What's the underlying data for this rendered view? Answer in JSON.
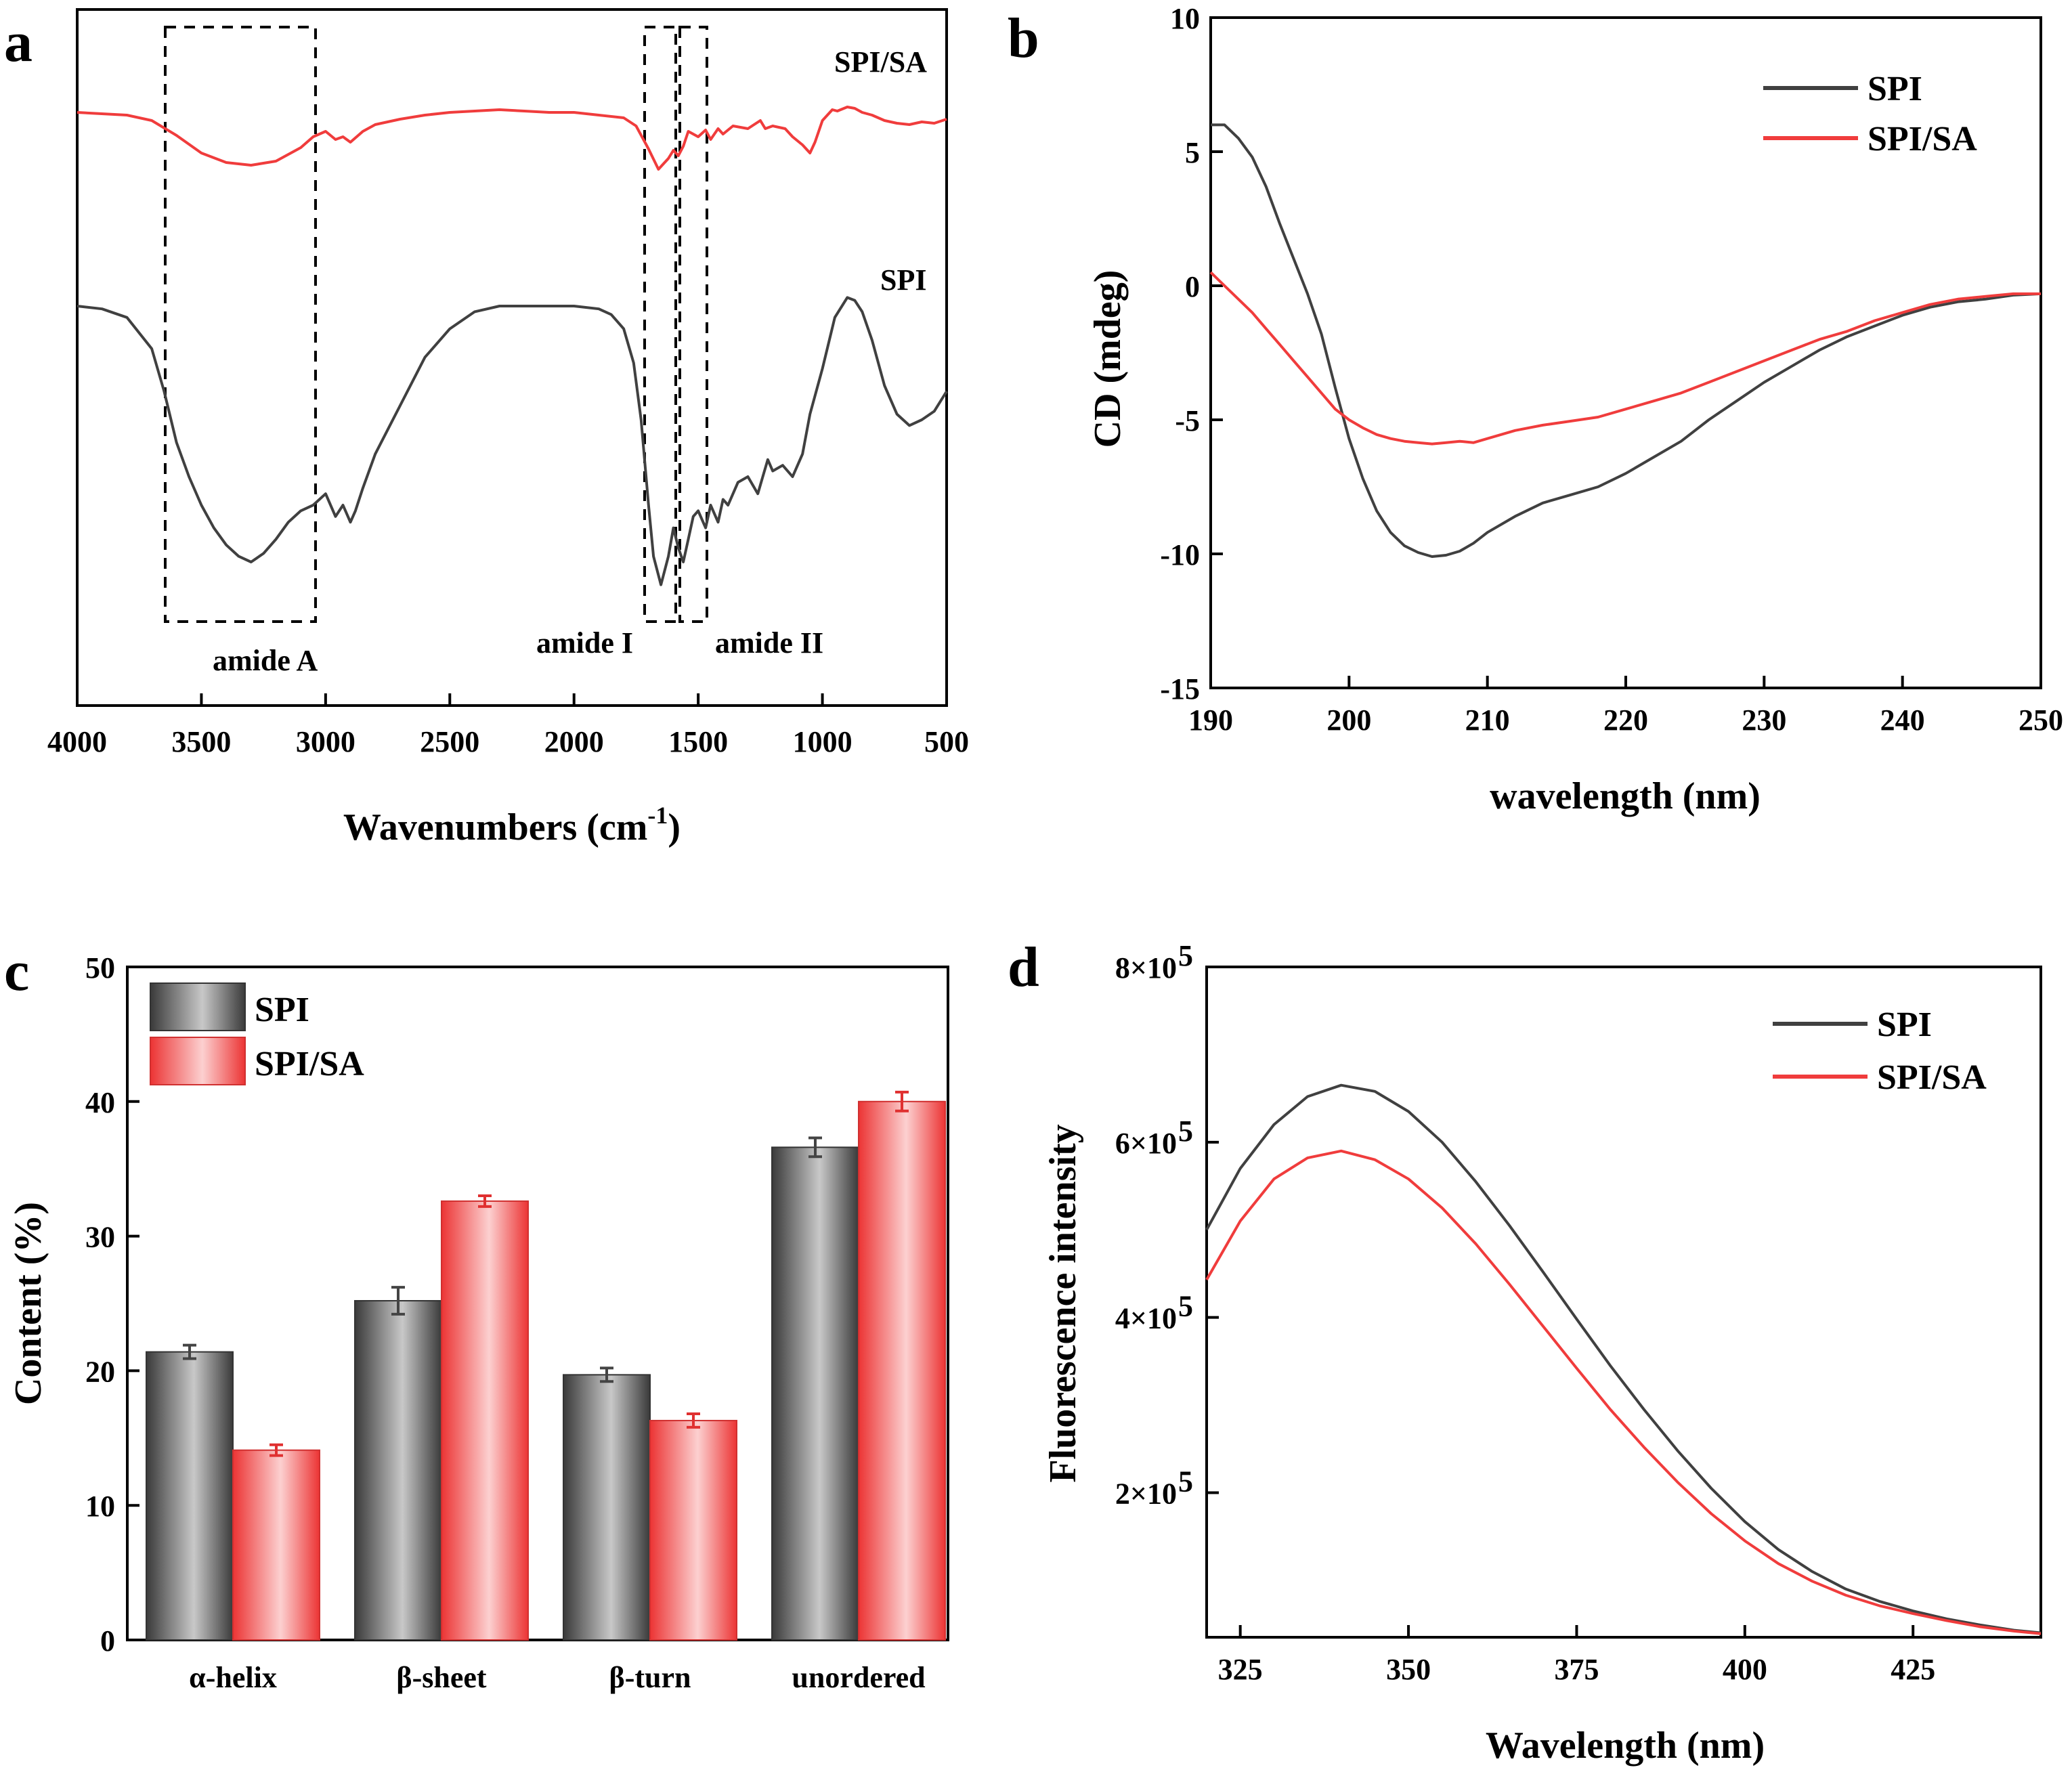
{
  "colors": {
    "spi": "#404040",
    "spisa": "#f03c3c",
    "dash": "#000000"
  },
  "panels": {
    "a": {
      "letter": "a",
      "xlabel_main": "Wavenumbers (cm",
      "xlabel_sup": "-1",
      "xlabel_end": ")",
      "ticks": [
        "4000",
        "3500",
        "3000",
        "2500",
        "2000",
        "1500",
        "1000",
        "500"
      ],
      "labels": {
        "spisa": "SPI/SA",
        "spi": "SPI"
      },
      "annotations": {
        "amide_a": "amide A",
        "amide_i": "amide I",
        "amide_ii": "amide II"
      }
    },
    "b": {
      "letter": "b",
      "xlabel": "wavelength (nm)",
      "ylabel": "CD (mdeg)",
      "xticks": [
        "190",
        "200",
        "210",
        "220",
        "230",
        "240",
        "250"
      ],
      "yticks": [
        "10",
        "5",
        "0",
        "-5",
        "-10",
        "-15"
      ],
      "legend": [
        "SPI",
        "SPI/SA"
      ]
    },
    "c": {
      "letter": "c",
      "ylabel": "Content (%)",
      "yticks": [
        "0",
        "10",
        "20",
        "30",
        "40",
        "50"
      ],
      "legend": [
        "SPI",
        "SPI/SA"
      ]
    },
    "d": {
      "letter": "d",
      "xlabel": "Wavelength (nm)",
      "ylabel": "Fluorescence intensity",
      "xticks": [
        "325",
        "350",
        "375",
        "400",
        "425"
      ],
      "ytick_base": [
        "2×10",
        "4×10",
        "6×10",
        "8×10"
      ],
      "ytick_exp": "5",
      "legend": [
        "SPI",
        "SPI/SA"
      ]
    }
  },
  "chart_data": [
    {
      "panel": "a",
      "type": "line",
      "title": "",
      "xlabel": "Wavenumbers (cm-1)",
      "ylabel": "",
      "xlim": [
        4000,
        500
      ],
      "series": [
        {
          "name": "SPI/SA",
          "x": [
            4000,
            3800,
            3700,
            3600,
            3500,
            3400,
            3300,
            3200,
            3100,
            3050,
            3000,
            2960,
            2930,
            2900,
            2850,
            2800,
            2700,
            2600,
            2500,
            2400,
            2300,
            2200,
            2100,
            2000,
            1900,
            1800,
            1750,
            1700,
            1660,
            1620,
            1600,
            1580,
            1560,
            1540,
            1500,
            1470,
            1450,
            1420,
            1400,
            1360,
            1300,
            1250,
            1230,
            1200,
            1150,
            1120,
            1080,
            1050,
            1030,
            1000,
            960,
            940,
            900,
            870,
            840,
            800,
            750,
            700,
            650,
            600,
            550,
            500
          ],
          "y": [
            0.92,
            0.9,
            0.86,
            0.75,
            0.62,
            0.55,
            0.53,
            0.56,
            0.66,
            0.74,
            0.78,
            0.72,
            0.74,
            0.7,
            0.78,
            0.83,
            0.87,
            0.9,
            0.92,
            0.93,
            0.94,
            0.93,
            0.92,
            0.92,
            0.9,
            0.88,
            0.82,
            0.65,
            0.5,
            0.58,
            0.64,
            0.6,
            0.67,
            0.78,
            0.74,
            0.79,
            0.72,
            0.8,
            0.76,
            0.82,
            0.8,
            0.86,
            0.8,
            0.82,
            0.8,
            0.74,
            0.68,
            0.62,
            0.7,
            0.86,
            0.94,
            0.93,
            0.96,
            0.95,
            0.92,
            0.9,
            0.86,
            0.84,
            0.83,
            0.85,
            0.84,
            0.87
          ]
        },
        {
          "name": "SPI",
          "x": [
            4000,
            3900,
            3800,
            3700,
            3650,
            3600,
            3550,
            3500,
            3450,
            3400,
            3350,
            3300,
            3250,
            3200,
            3150,
            3100,
            3050,
            3000,
            2960,
            2930,
            2900,
            2880,
            2850,
            2800,
            2700,
            2600,
            2500,
            2400,
            2300,
            2200,
            2100,
            2000,
            1900,
            1850,
            1800,
            1760,
            1730,
            1700,
            1680,
            1650,
            1620,
            1600,
            1580,
            1560,
            1540,
            1520,
            1500,
            1470,
            1450,
            1420,
            1400,
            1380,
            1340,
            1300,
            1260,
            1240,
            1220,
            1200,
            1160,
            1120,
            1080,
            1050,
            1000,
            950,
            900,
            870,
            840,
            800,
            750,
            700,
            650,
            600,
            550,
            500
          ],
          "y": [
            0.9,
            0.89,
            0.86,
            0.75,
            0.6,
            0.42,
            0.3,
            0.2,
            0.12,
            0.06,
            0.02,
            0.0,
            0.03,
            0.08,
            0.14,
            0.18,
            0.2,
            0.24,
            0.16,
            0.2,
            0.14,
            0.18,
            0.26,
            0.38,
            0.55,
            0.72,
            0.82,
            0.88,
            0.9,
            0.9,
            0.9,
            0.9,
            0.89,
            0.87,
            0.82,
            0.7,
            0.5,
            0.2,
            0.02,
            -0.08,
            0.02,
            0.12,
            0.05,
            0.0,
            0.08,
            0.16,
            0.18,
            0.12,
            0.2,
            0.14,
            0.22,
            0.2,
            0.28,
            0.3,
            0.24,
            0.3,
            0.36,
            0.32,
            0.34,
            0.3,
            0.38,
            0.52,
            0.68,
            0.86,
            0.93,
            0.92,
            0.88,
            0.78,
            0.62,
            0.52,
            0.48,
            0.5,
            0.53,
            0.6
          ]
        }
      ],
      "annotations": [
        "amide A",
        "amide I",
        "amide II"
      ]
    },
    {
      "panel": "b",
      "type": "line",
      "title": "",
      "xlabel": "wavelength (nm)",
      "ylabel": "CD (mdeg)",
      "xlim": [
        190,
        250
      ],
      "ylim": [
        -15,
        10
      ],
      "legend_position": "top-right",
      "series": [
        {
          "name": "SPI",
          "x": [
            190,
            191,
            192,
            193,
            194,
            195,
            196,
            197,
            198,
            199,
            200,
            201,
            202,
            203,
            204,
            205,
            206,
            207,
            208,
            209,
            210,
            212,
            214,
            216,
            218,
            220,
            222,
            224,
            226,
            228,
            230,
            232,
            234,
            236,
            238,
            240,
            242,
            244,
            246,
            248,
            250
          ],
          "y": [
            6.0,
            6.0,
            5.5,
            4.8,
            3.7,
            2.3,
            1.0,
            -0.3,
            -1.8,
            -3.8,
            -5.7,
            -7.2,
            -8.4,
            -9.2,
            -9.7,
            -9.95,
            -10.1,
            -10.05,
            -9.9,
            -9.6,
            -9.2,
            -8.6,
            -8.1,
            -7.8,
            -7.5,
            -7.0,
            -6.4,
            -5.8,
            -5.0,
            -4.3,
            -3.6,
            -3.0,
            -2.4,
            -1.9,
            -1.5,
            -1.1,
            -0.8,
            -0.6,
            -0.5,
            -0.35,
            -0.3
          ]
        },
        {
          "name": "SPI/SA",
          "x": [
            190,
            191,
            192,
            193,
            194,
            195,
            196,
            197,
            198,
            199,
            200,
            201,
            202,
            203,
            204,
            205,
            206,
            207,
            208,
            209,
            210,
            212,
            214,
            216,
            218,
            220,
            222,
            224,
            226,
            228,
            230,
            232,
            234,
            236,
            238,
            240,
            242,
            244,
            246,
            248,
            250
          ],
          "y": [
            0.5,
            0.0,
            -0.5,
            -1.0,
            -1.6,
            -2.2,
            -2.8,
            -3.4,
            -4.0,
            -4.6,
            -5.0,
            -5.3,
            -5.55,
            -5.7,
            -5.8,
            -5.85,
            -5.9,
            -5.85,
            -5.8,
            -5.85,
            -5.7,
            -5.4,
            -5.2,
            -5.05,
            -4.9,
            -4.6,
            -4.3,
            -4.0,
            -3.6,
            -3.2,
            -2.8,
            -2.4,
            -2.0,
            -1.7,
            -1.3,
            -1.0,
            -0.7,
            -0.5,
            -0.4,
            -0.3,
            -0.3
          ]
        }
      ]
    },
    {
      "panel": "c",
      "type": "bar",
      "title": "",
      "xlabel": "",
      "ylabel": "Content (%)",
      "ylim": [
        0,
        50
      ],
      "legend_position": "top-left",
      "categories": [
        "α-helix",
        "β-sheet",
        "β-turn",
        "unordered"
      ],
      "series": [
        {
          "name": "SPI",
          "values": [
            21.4,
            25.2,
            19.7,
            36.6
          ],
          "errors": [
            0.5,
            1.0,
            0.5,
            0.7
          ]
        },
        {
          "name": "SPI/SA",
          "values": [
            14.1,
            32.6,
            16.3,
            40.0
          ],
          "errors": [
            0.4,
            0.4,
            0.5,
            0.7
          ]
        }
      ]
    },
    {
      "panel": "d",
      "type": "line",
      "title": "",
      "xlabel": "Wavelength (nm)",
      "ylabel": "Fluorescence intensity",
      "xlim": [
        320,
        444
      ],
      "ylim": [
        35000,
        800000
      ],
      "legend_position": "top-right",
      "series": [
        {
          "name": "SPI",
          "x": [
            320,
            325,
            330,
            335,
            340,
            345,
            350,
            355,
            360,
            365,
            370,
            375,
            380,
            385,
            390,
            395,
            400,
            405,
            410,
            415,
            420,
            425,
            430,
            435,
            440,
            444
          ],
          "y": [
            500000,
            570000,
            620000,
            652000,
            665000,
            658000,
            635000,
            600000,
            555000,
            505000,
            452000,
            398000,
            345000,
            295000,
            248000,
            205000,
            167000,
            135000,
            110000,
            90000,
            76000,
            65000,
            56000,
            49000,
            43000,
            40000
          ]
        },
        {
          "name": "SPI/SA",
          "x": [
            320,
            325,
            330,
            335,
            340,
            345,
            350,
            355,
            360,
            365,
            370,
            375,
            380,
            385,
            390,
            395,
            400,
            405,
            410,
            415,
            420,
            425,
            430,
            435,
            440,
            444
          ],
          "y": [
            443000,
            510000,
            558000,
            582000,
            590000,
            580000,
            558000,
            525000,
            484000,
            438000,
            390000,
            342000,
            295000,
            252000,
            212000,
            176000,
            145000,
            119000,
            99000,
            83000,
            71000,
            62000,
            54000,
            47000,
            42000,
            39000
          ]
        }
      ]
    }
  ]
}
